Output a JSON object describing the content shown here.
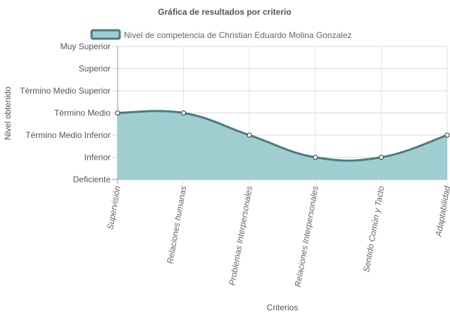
{
  "chart_data": {
    "type": "area",
    "title": "Gráfica de resultados por criterio",
    "xlabel": "Criterios",
    "ylabel": "Nivel obtenido",
    "y_levels": [
      "Deficiente",
      "Inferior",
      "Término Medio Inferior",
      "Término Medio",
      "Término Medio Superior",
      "Superior",
      "Muy Superior"
    ],
    "categories": [
      "Supervisión",
      "Relaciones humanas",
      "Problemas Interpersonales",
      "Relaciones Interpersonales",
      "Sentido Común y Tacto",
      "Adaptabilidad"
    ],
    "series": [
      {
        "name": "Nivel de competencia de Christian Eduardo Molina Gonzalez",
        "values": [
          3,
          3,
          2,
          1,
          1,
          2
        ]
      }
    ],
    "ylim": [
      0,
      6
    ],
    "grid": true,
    "legend_position": "top",
    "colors": {
      "fill": "#9fcdd0",
      "line": "#4a7b82",
      "point_fill": "#ffffff",
      "point_stroke": "#333333",
      "grid": "#d9d9d9",
      "axis": "#999999"
    }
  }
}
